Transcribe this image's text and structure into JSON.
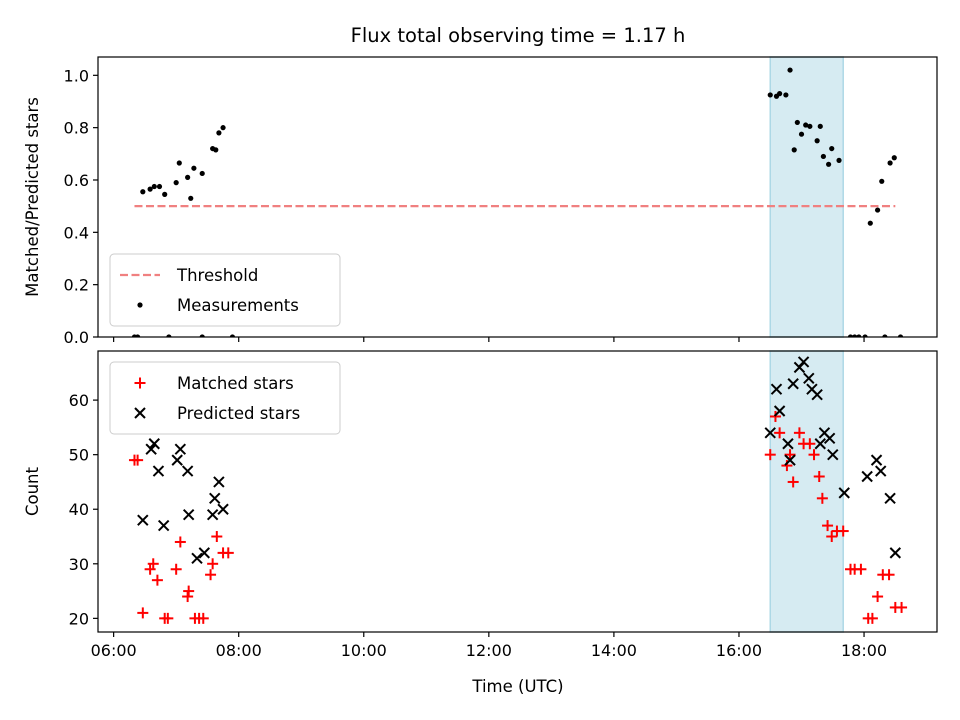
{
  "chart_data": {
    "title": "Flux total observing time = 1.17 h",
    "shaded_region": {
      "x": [
        "16:30",
        "17:40"
      ],
      "color": "#add8e6"
    },
    "x_axis": {
      "label": "Time (UTC)",
      "range": [
        "05:45",
        "19:10"
      ],
      "ticks": [
        "06:00",
        "08:00",
        "10:00",
        "12:00",
        "14:00",
        "16:00",
        "18:00"
      ]
    },
    "panels": [
      {
        "type": "scatter",
        "ylabel": "Matched/Predicted stars",
        "ylim": [
          0,
          1.07
        ],
        "yticks": [
          "0.0",
          "0.2",
          "0.4",
          "0.6",
          "0.8",
          "1.0"
        ],
        "legend": {
          "position": "lower-left",
          "entries": [
            "Threshold",
            "Measurements"
          ]
        },
        "threshold": {
          "name": "Threshold",
          "value": 0.5,
          "x": [
            "06:20",
            "18:30"
          ],
          "color": "#f08080",
          "style": "dashed"
        },
        "series": [
          {
            "name": "Measurements",
            "marker": "dot",
            "color": "#000000",
            "points": [
              [
                "06:20",
                0.0
              ],
              [
                "06:23",
                0.0
              ],
              [
                "06:53",
                0.0
              ],
              [
                "07:25",
                0.0
              ],
              [
                "07:54",
                0.0
              ],
              [
                "06:28",
                0.555
              ],
              [
                "06:35",
                0.565
              ],
              [
                "06:39",
                0.575
              ],
              [
                "06:44",
                0.575
              ],
              [
                "06:49",
                0.545
              ],
              [
                "07:00",
                0.59
              ],
              [
                "07:03",
                0.665
              ],
              [
                "07:11",
                0.61
              ],
              [
                "07:14",
                0.53
              ],
              [
                "07:17",
                0.645
              ],
              [
                "07:25",
                0.625
              ],
              [
                "07:35",
                0.72
              ],
              [
                "07:38",
                0.715
              ],
              [
                "07:41",
                0.78
              ],
              [
                "07:45",
                0.8
              ],
              [
                "16:30",
                0.925
              ],
              [
                "16:36",
                0.92
              ],
              [
                "16:39",
                0.93
              ],
              [
                "16:45",
                0.925
              ],
              [
                "16:49",
                1.02
              ],
              [
                "16:53",
                0.715
              ],
              [
                "16:56",
                0.82
              ],
              [
                "17:00",
                0.775
              ],
              [
                "17:04",
                0.81
              ],
              [
                "17:08",
                0.805
              ],
              [
                "17:15",
                0.75
              ],
              [
                "17:18",
                0.805
              ],
              [
                "17:21",
                0.69
              ],
              [
                "17:26",
                0.66
              ],
              [
                "17:29",
                0.72
              ],
              [
                "17:36",
                0.675
              ],
              [
                "17:47",
                0.0
              ],
              [
                "17:51",
                0.0
              ],
              [
                "17:55",
                0.0
              ],
              [
                "18:01",
                0.0
              ],
              [
                "18:06",
                0.435
              ],
              [
                "18:13",
                0.485
              ],
              [
                "18:17",
                0.595
              ],
              [
                "18:20",
                0.0
              ],
              [
                "18:25",
                0.665
              ],
              [
                "18:29",
                0.685
              ],
              [
                "18:35",
                0.0
              ]
            ]
          }
        ]
      },
      {
        "type": "scatter",
        "ylabel": "Count",
        "ylim": [
          17.5,
          69
        ],
        "yticks": [
          "20",
          "30",
          "40",
          "50",
          "60"
        ],
        "legend": {
          "position": "upper-left",
          "entries": [
            "Matched stars",
            "Predicted stars"
          ]
        },
        "series": [
          {
            "name": "Matched stars",
            "marker": "plus",
            "color": "#ff0000",
            "points": [
              [
                "06:20",
                49
              ],
              [
                "06:23",
                49
              ],
              [
                "06:28",
                21
              ],
              [
                "06:35",
                29
              ],
              [
                "06:38",
                30
              ],
              [
                "06:42",
                27
              ],
              [
                "06:49",
                20
              ],
              [
                "06:52",
                20
              ],
              [
                "07:00",
                29
              ],
              [
                "07:04",
                34
              ],
              [
                "07:11",
                24
              ],
              [
                "07:12",
                25
              ],
              [
                "07:18",
                20
              ],
              [
                "07:22",
                20
              ],
              [
                "07:26",
                20
              ],
              [
                "07:33",
                28
              ],
              [
                "07:35",
                30
              ],
              [
                "07:39",
                35
              ],
              [
                "07:45",
                32
              ],
              [
                "07:50",
                32
              ],
              [
                "16:30",
                50
              ],
              [
                "16:35",
                57
              ],
              [
                "16:39",
                54
              ],
              [
                "16:46",
                48
              ],
              [
                "16:49",
                50
              ],
              [
                "16:52",
                45
              ],
              [
                "16:58",
                54
              ],
              [
                "17:02",
                52
              ],
              [
                "17:08",
                52
              ],
              [
                "17:12",
                50
              ],
              [
                "17:17",
                46
              ],
              [
                "17:20",
                42
              ],
              [
                "17:25",
                37
              ],
              [
                "17:29",
                35
              ],
              [
                "17:34",
                36
              ],
              [
                "17:40",
                36
              ],
              [
                "17:47",
                29
              ],
              [
                "17:51",
                29
              ],
              [
                "17:57",
                29
              ],
              [
                "18:04",
                20
              ],
              [
                "18:08",
                20
              ],
              [
                "18:13",
                24
              ],
              [
                "18:18",
                28
              ],
              [
                "18:24",
                28
              ],
              [
                "18:30",
                22
              ],
              [
                "18:36",
                22
              ]
            ]
          },
          {
            "name": "Predicted stars",
            "marker": "x",
            "color": "#000000",
            "points": [
              [
                "06:28",
                38
              ],
              [
                "06:36",
                51
              ],
              [
                "06:39",
                52
              ],
              [
                "06:43",
                47
              ],
              [
                "06:48",
                37
              ],
              [
                "07:01",
                49
              ],
              [
                "07:04",
                51
              ],
              [
                "07:11",
                47
              ],
              [
                "07:12",
                39
              ],
              [
                "07:20",
                31
              ],
              [
                "07:27",
                32
              ],
              [
                "07:35",
                39
              ],
              [
                "07:37",
                42
              ],
              [
                "07:41",
                45
              ],
              [
                "07:45",
                40
              ],
              [
                "16:30",
                54
              ],
              [
                "16:36",
                62
              ],
              [
                "16:39",
                58
              ],
              [
                "16:47",
                52
              ],
              [
                "16:49",
                49
              ],
              [
                "16:52",
                63
              ],
              [
                "16:58",
                66
              ],
              [
                "17:02",
                67
              ],
              [
                "17:07",
                64
              ],
              [
                "17:10",
                62
              ],
              [
                "17:15",
                61
              ],
              [
                "17:18",
                52
              ],
              [
                "17:22",
                54
              ],
              [
                "17:27",
                53
              ],
              [
                "17:30",
                50
              ],
              [
                "17:41",
                43
              ],
              [
                "18:03",
                46
              ],
              [
                "18:12",
                49
              ],
              [
                "18:16",
                47
              ],
              [
                "18:25",
                42
              ],
              [
                "18:30",
                32
              ]
            ]
          }
        ]
      }
    ]
  }
}
